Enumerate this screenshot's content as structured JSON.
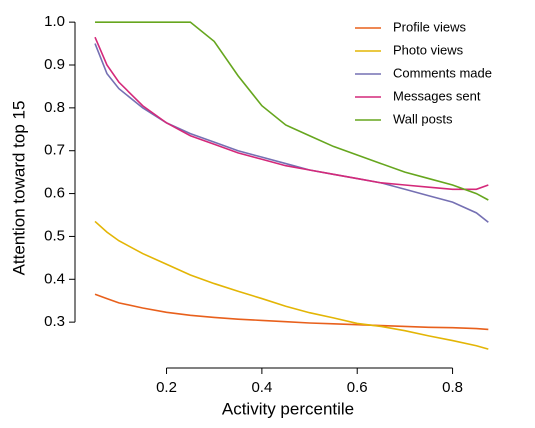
{
  "chart_data": {
    "type": "line",
    "xlabel": "Activity percentile",
    "ylabel": "Attention toward top 15",
    "x": [
      0.05,
      0.075,
      0.1,
      0.15,
      0.2,
      0.25,
      0.3,
      0.35,
      0.4,
      0.45,
      0.5,
      0.55,
      0.6,
      0.65,
      0.7,
      0.75,
      0.8,
      0.85,
      0.875
    ],
    "series": [
      {
        "name": "Profile views",
        "color": "#e8601c",
        "values": [
          0.365,
          0.355,
          0.345,
          0.333,
          0.323,
          0.316,
          0.311,
          0.307,
          0.304,
          0.301,
          0.298,
          0.296,
          0.294,
          0.292,
          0.29,
          0.288,
          0.287,
          0.285,
          0.283
        ]
      },
      {
        "name": "Photo views",
        "color": "#e3b505",
        "values": [
          0.535,
          0.51,
          0.49,
          0.46,
          0.435,
          0.41,
          0.39,
          0.372,
          0.355,
          0.337,
          0.322,
          0.31,
          0.297,
          0.29,
          0.28,
          0.268,
          0.257,
          0.245,
          0.237
        ]
      },
      {
        "name": "Comments made",
        "color": "#7570b3",
        "values": [
          0.95,
          0.88,
          0.845,
          0.8,
          0.765,
          0.74,
          0.72,
          0.7,
          0.685,
          0.67,
          0.655,
          0.645,
          0.635,
          0.625,
          0.61,
          0.595,
          0.58,
          0.555,
          0.533
        ]
      },
      {
        "name": "Messages sent",
        "color": "#d4297a",
        "values": [
          0.965,
          0.9,
          0.86,
          0.805,
          0.765,
          0.735,
          0.715,
          0.695,
          0.68,
          0.665,
          0.655,
          0.645,
          0.635,
          0.625,
          0.62,
          0.615,
          0.61,
          0.61,
          0.62
        ]
      },
      {
        "name": "Wall posts",
        "color": "#66a61e",
        "values": [
          1.0,
          1.0,
          1.0,
          1.0,
          1.0,
          1.0,
          0.955,
          0.875,
          0.805,
          0.76,
          0.735,
          0.71,
          0.69,
          0.67,
          0.65,
          0.635,
          0.62,
          0.6,
          0.585
        ]
      }
    ],
    "xlim": [
      0.008,
      0.91
    ],
    "ylim": [
      0.193,
      1.033
    ],
    "xticks": [
      0.2,
      0.4,
      0.6,
      0.8
    ],
    "yticks": [
      0.3,
      0.4,
      0.5,
      0.6,
      0.7,
      0.8,
      0.9,
      {
        "value": 1,
        "label": "1.0"
      }
    ],
    "legend": "upper-right"
  }
}
